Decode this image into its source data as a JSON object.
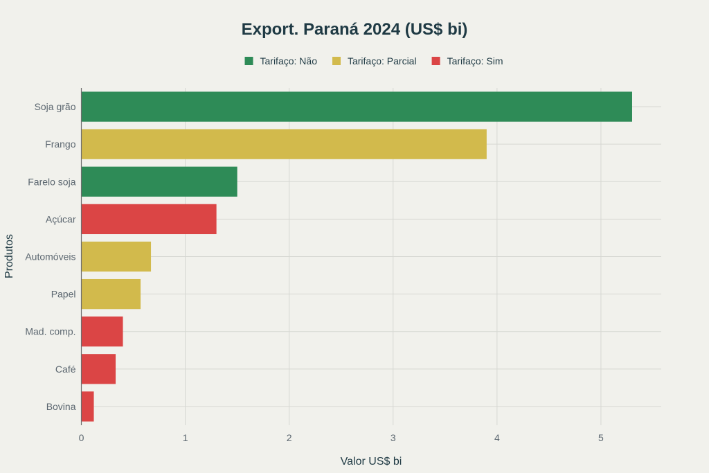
{
  "chart_data": {
    "type": "bar",
    "orientation": "horizontal",
    "title": "Export. Paraná 2024 (US$ bi)",
    "xlabel": "Valor US$ bi",
    "ylabel": "Produtos",
    "xlim": [
      0,
      5.58
    ],
    "xticks": [
      0,
      1,
      2,
      3,
      4,
      5
    ],
    "grid": true,
    "legend_position": "top-center",
    "categories": [
      "Soja grão",
      "Frango",
      "Farelo soja",
      "Açúcar",
      "Automóveis",
      "Papel",
      "Mad. comp.",
      "Café",
      "Bovina"
    ],
    "values": [
      5.3,
      3.9,
      1.5,
      1.3,
      0.67,
      0.57,
      0.4,
      0.33,
      0.12
    ],
    "groups": [
      "nao",
      "parcial",
      "nao",
      "sim",
      "parcial",
      "parcial",
      "sim",
      "sim",
      "sim"
    ],
    "series": [
      {
        "key": "nao",
        "name": "Tarifaço: Não",
        "color": "#2e8b57"
      },
      {
        "key": "parcial",
        "name": "Tarifaço: Parcial",
        "color": "#d2ba4c"
      },
      {
        "key": "sim",
        "name": "Tarifaço: Sim",
        "color": "#db4545"
      }
    ]
  }
}
